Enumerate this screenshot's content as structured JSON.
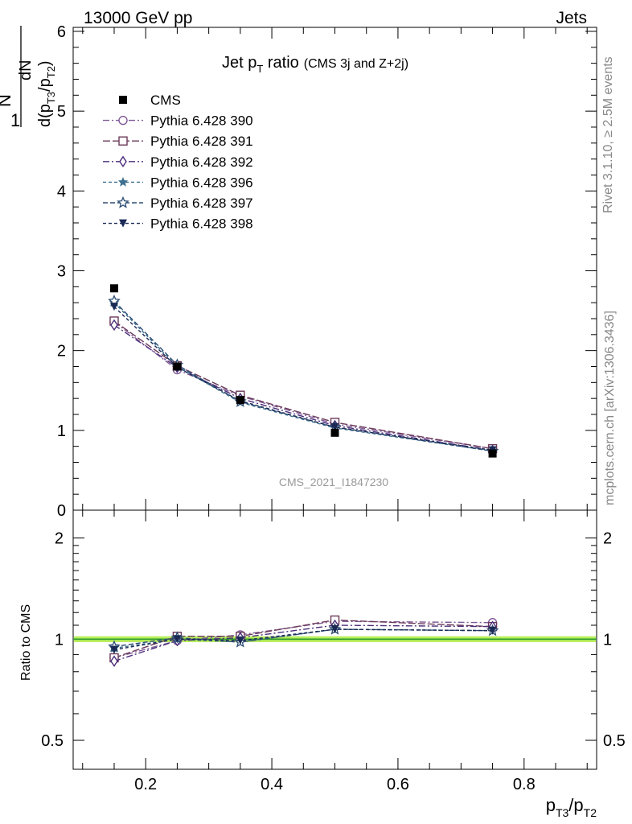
{
  "header": {
    "left": "13000 GeV pp",
    "right": "Jets"
  },
  "side_labels": {
    "rivet": "Rivet 3.1.10, ≥ 2.5M events",
    "mcplots": "mcplots.cern.ch [arXiv:1306.3436]"
  },
  "watermark": "CMS_2021_I1847230",
  "chart_data": [
    {
      "type": "line",
      "title": {
        "main": "Jet p",
        "sub": "T",
        "rest": " ratio",
        "small": "(CMS 3j and Z+2j)"
      },
      "ylabel": {
        "one": "1",
        "n": "N",
        "dn": "dN",
        "denom": "d(p",
        "t3": "T3",
        "slash": "/p",
        "t2": "T2",
        "close": ")"
      },
      "xlim": [
        0.085,
        0.915
      ],
      "ylim": [
        0,
        6.05
      ],
      "yticks": [
        0,
        1,
        2,
        3,
        4,
        5,
        6
      ],
      "ytick_labels": [
        "0",
        "1",
        "2",
        "3",
        "4",
        "5",
        "6"
      ],
      "x": [
        0.15,
        0.25,
        0.35,
        0.5,
        0.75
      ],
      "series": [
        {
          "name": "CMS",
          "marker": "filled-square",
          "color": "#000000",
          "dash": "none",
          "values": [
            2.78,
            1.8,
            1.38,
            0.97,
            0.71
          ]
        },
        {
          "name": "Pythia 6.428 390",
          "marker": "open-circle",
          "color": "#7f5a96",
          "dash": "8,3,2,3",
          "values": [
            2.36,
            1.76,
            1.43,
            1.08,
            0.77
          ]
        },
        {
          "name": "Pythia 6.428 391",
          "marker": "open-square",
          "color": "#6b3a5a",
          "dash": "9,3",
          "values": [
            2.37,
            1.81,
            1.44,
            1.1,
            0.77
          ]
        },
        {
          "name": "Pythia 6.428 392",
          "marker": "open-diamond",
          "color": "#4b2d7a",
          "dash": "8,3,2,3",
          "values": [
            2.32,
            1.79,
            1.4,
            1.06,
            0.75
          ]
        },
        {
          "name": "Pythia 6.428 396",
          "marker": "filled-star",
          "color": "#3e7090",
          "dash": "4,3",
          "values": [
            2.6,
            1.8,
            1.35,
            1.03,
            0.74
          ]
        },
        {
          "name": "Pythia 6.428 397",
          "marker": "open-star",
          "color": "#2e4e73",
          "dash": "6,3",
          "values": [
            2.62,
            1.82,
            1.36,
            1.04,
            0.74
          ]
        },
        {
          "name": "Pythia 6.428 398",
          "marker": "filled-triangle-down",
          "color": "#1a2a55",
          "dash": "4,3",
          "values": [
            2.55,
            1.79,
            1.37,
            1.04,
            0.75
          ]
        }
      ],
      "legend_position": "top-left",
      "grid": false
    },
    {
      "type": "line",
      "ylabel": "Ratio to CMS",
      "xlabel": {
        "p1": "p",
        "s1": "T3",
        "slash": "/p",
        "s2": "T2"
      },
      "xticks": [
        0.2,
        0.4,
        0.6,
        0.8
      ],
      "xtick_labels": [
        "0.2",
        "0.4",
        "0.6",
        "0.8"
      ],
      "ylim": [
        0.41,
        2.42
      ],
      "log_y": true,
      "yticks": [
        0.5,
        1,
        2
      ],
      "ytick_labels": [
        "0.5",
        "1",
        "2"
      ],
      "x": [
        0.15,
        0.25,
        0.35,
        0.5,
        0.75
      ],
      "reference_band": {
        "color": "#b7ee5a",
        "line_color": "#2f9a2f",
        "low": 0.98,
        "high": 1.02
      },
      "series": [
        {
          "name": "Pythia 6.428 390",
          "values": [
            0.88,
            0.99,
            1.03,
            1.13,
            1.12
          ]
        },
        {
          "name": "Pythia 6.428 391",
          "values": [
            0.88,
            1.02,
            1.02,
            1.14,
            1.09
          ]
        },
        {
          "name": "Pythia 6.428 392",
          "values": [
            0.86,
            0.99,
            1.01,
            1.1,
            1.09
          ]
        },
        {
          "name": "Pythia 6.428 396",
          "values": [
            0.94,
            1.0,
            0.98,
            1.07,
            1.06
          ]
        },
        {
          "name": "Pythia 6.428 397",
          "values": [
            0.95,
            1.01,
            0.98,
            1.07,
            1.06
          ]
        },
        {
          "name": "Pythia 6.428 398",
          "values": [
            0.93,
            1.0,
            0.99,
            1.07,
            1.06
          ]
        }
      ]
    }
  ]
}
